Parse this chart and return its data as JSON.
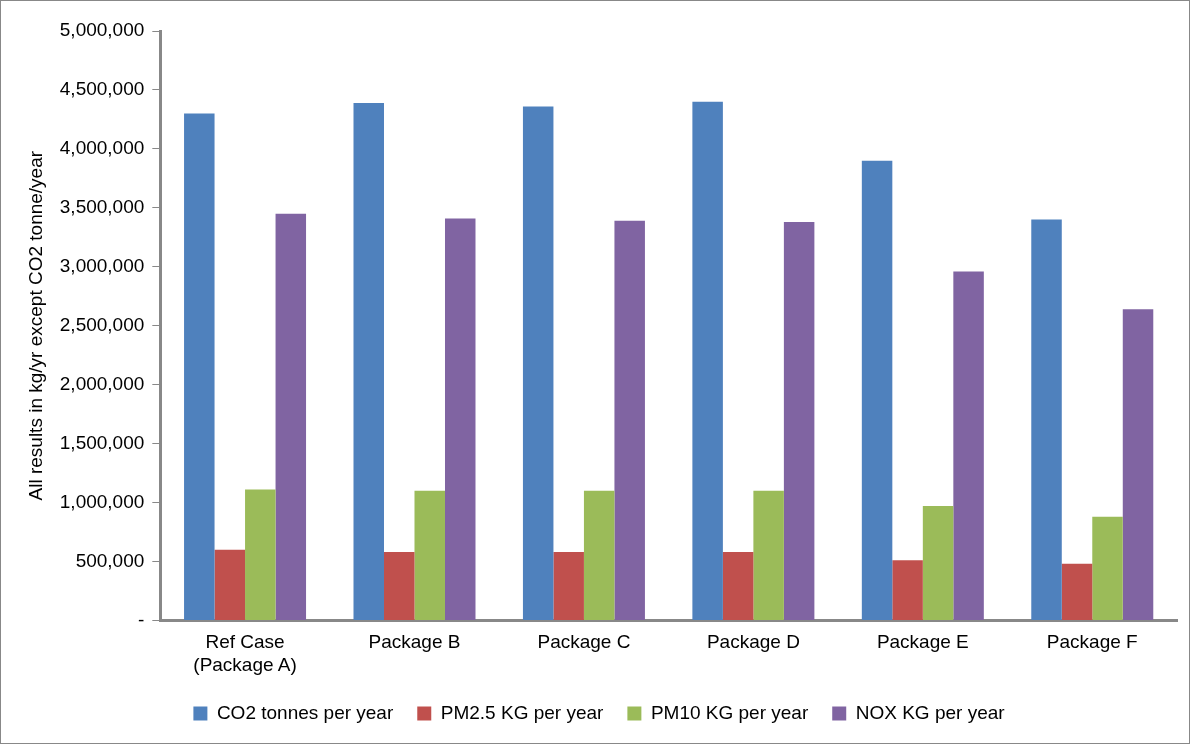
{
  "chart_data": {
    "type": "bar",
    "ylabel": "All results in kg/yr except CO2 tonne/year",
    "categories": [
      "Ref Case (Package A)",
      "Package B",
      "Package C",
      "Package D",
      "Package E",
      "Package F"
    ],
    "series": [
      {
        "name": "CO2 tonnes per year",
        "color": "#4f81bd",
        "values": [
          4300000,
          4390000,
          4360000,
          4400000,
          3900000,
          3400000
        ]
      },
      {
        "name": "PM2.5 KG per year",
        "color": "#c0504d",
        "values": [
          600000,
          580000,
          580000,
          580000,
          510000,
          480000
        ]
      },
      {
        "name": "PM10 KG per year",
        "color": "#9bbb59",
        "values": [
          1110000,
          1100000,
          1100000,
          1100000,
          970000,
          880000
        ]
      },
      {
        "name": "NOX KG per year",
        "color": "#8064a2",
        "values": [
          3450000,
          3410000,
          3390000,
          3380000,
          2960000,
          2640000
        ]
      }
    ],
    "ylim": [
      0,
      5000000
    ],
    "yticks": [
      {
        "value": 0,
        "label": "-"
      },
      {
        "value": 500000,
        "label": "500,000"
      },
      {
        "value": 1000000,
        "label": "1,000,000"
      },
      {
        "value": 1500000,
        "label": "1,500,000"
      },
      {
        "value": 2000000,
        "label": "2,000,000"
      },
      {
        "value": 2500000,
        "label": "2,500,000"
      },
      {
        "value": 3000000,
        "label": "3,000,000"
      },
      {
        "value": 3500000,
        "label": "3,500,000"
      },
      {
        "value": 4000000,
        "label": "4,000,000"
      },
      {
        "value": 4500000,
        "label": "4,500,000"
      },
      {
        "value": 5000000,
        "label": "5,000,000"
      }
    ],
    "grid": false,
    "legend": "bottom"
  }
}
